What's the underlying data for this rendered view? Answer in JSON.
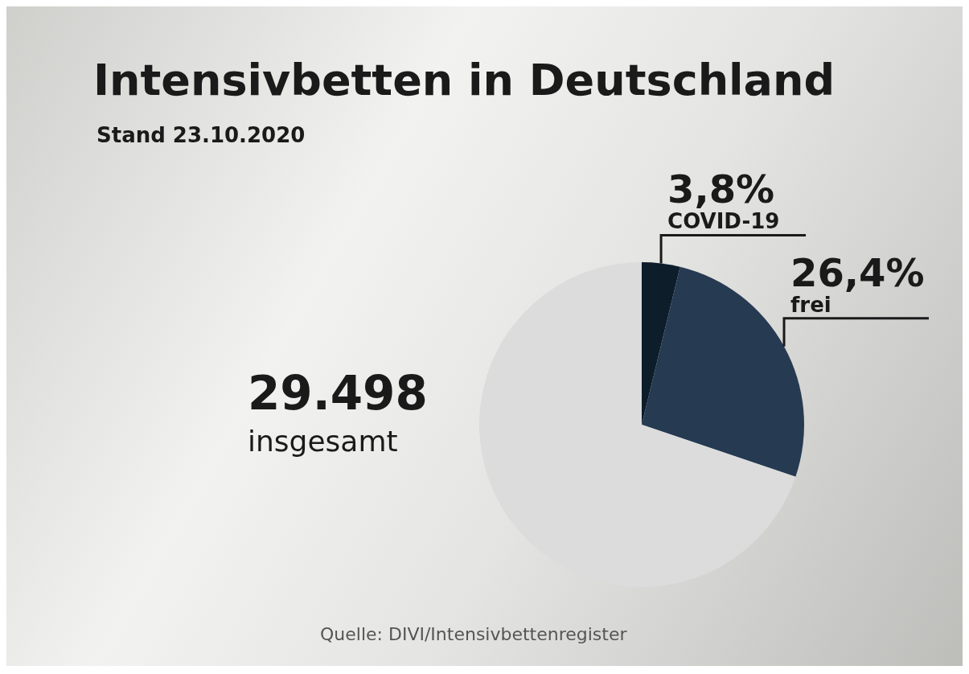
{
  "chart_data": {
    "type": "pie",
    "title": "Intensivbetten in Deutschland",
    "subtitle": "Stand 23.10.2020",
    "categories": [
      "COVID-19",
      "frei",
      null
    ],
    "values": [
      3.8,
      26.4,
      69.8
    ],
    "colors": [
      "#0d1d29",
      "#263a52",
      "#dcdcdc"
    ],
    "value_labels": [
      "3,8%",
      "26,4%",
      null
    ],
    "annotations": [
      "29.498 insgesamt",
      "Quelle: DIVI/Intensivbettenregister"
    ],
    "legend": false
  }
}
